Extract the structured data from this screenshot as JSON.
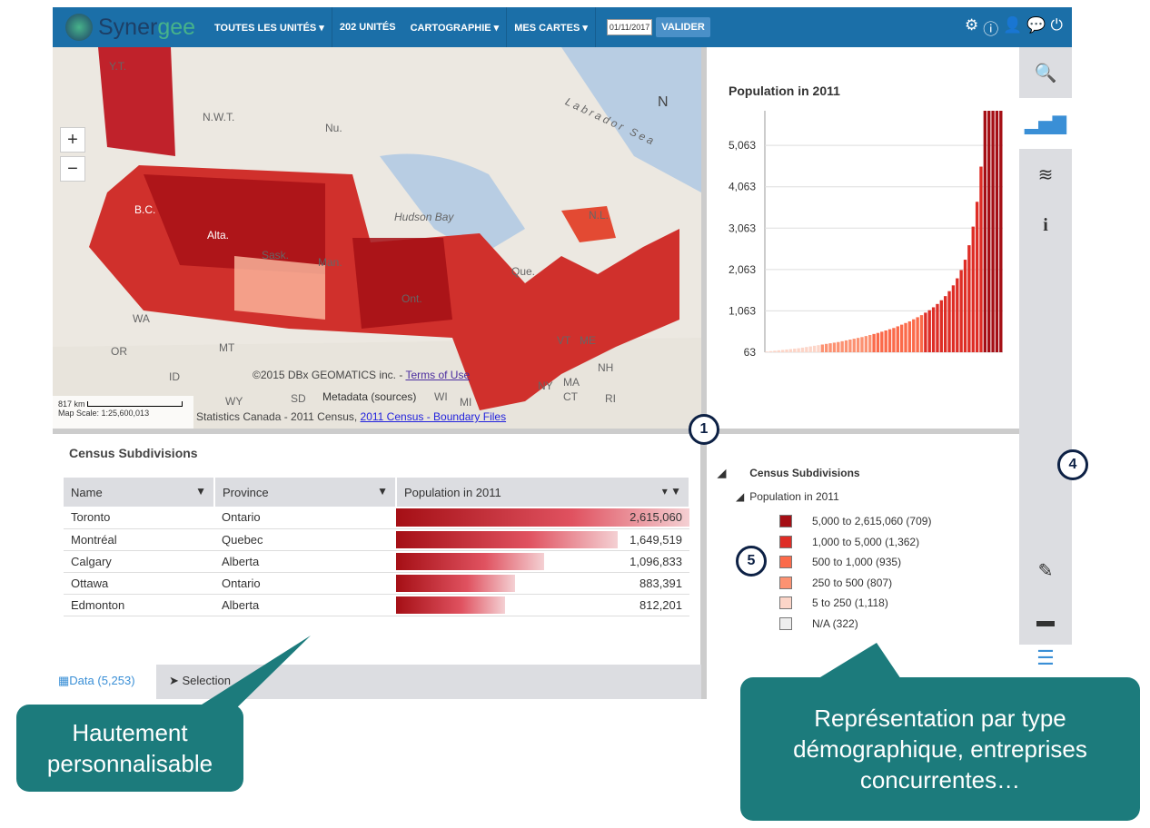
{
  "topbar": {
    "brand_a": "Syner",
    "brand_b": "gee",
    "nav": [
      "TOUTES LES UNITÉS ▾",
      "202 UNITÉS",
      "CARTOGRAPHIE ▾",
      "MES CARTES ▾"
    ],
    "date": "01/11/2017",
    "valider": "VALIDER"
  },
  "map": {
    "labels": [
      "Y.T.",
      "N.W.T.",
      "Nu.",
      "B.C.",
      "Alta.",
      "Sask.",
      "Man.",
      "Ont.",
      "Que.",
      "N.L.",
      "Hudson Bay",
      "Labrador Sea",
      "WA",
      "OR",
      "MT",
      "ID",
      "WY",
      "SD",
      "WI",
      "MI",
      "NY",
      "MA",
      "CT",
      "RI",
      "NH",
      "ME",
      "VT",
      "N"
    ],
    "copyright": "©2015 DBx GEOMATICS inc. - ",
    "terms": "Terms of Use",
    "metadata": "Metadata (sources)",
    "source": "Statistics Canada - 2011 Census, ",
    "source_link": "2011 Census - Boundary Files",
    "scale_km": "817 km",
    "map_scale": "Map Scale: 1:25,600,013",
    "zoom_in": "+",
    "zoom_out": "−"
  },
  "chart_data": {
    "type": "bar",
    "title": "Population in 2011",
    "yticks": [
      "63",
      "1,063",
      "2,063",
      "3,063",
      "4,063",
      "5,063"
    ],
    "ylim": [
      63,
      5900
    ],
    "values": [
      80,
      90,
      100,
      110,
      120,
      130,
      140,
      150,
      160,
      175,
      190,
      205,
      220,
      235,
      250,
      265,
      280,
      295,
      310,
      330,
      350,
      370,
      390,
      410,
      430,
      455,
      480,
      505,
      530,
      560,
      590,
      620,
      650,
      690,
      730,
      770,
      810,
      860,
      910,
      960,
      1020,
      1080,
      1150,
      1230,
      1320,
      1420,
      1540,
      1680,
      1850,
      2050,
      2300,
      2650,
      3100,
      3700,
      4550,
      5900,
      5900,
      5900,
      5900,
      5900
    ]
  },
  "table": {
    "title": "Census Subdivisions",
    "headers": [
      "Name",
      "Province",
      "Population in 2011"
    ],
    "rows": [
      [
        "Toronto",
        "Ontario",
        "2,615,060"
      ],
      [
        "Montréal",
        "Quebec",
        "1,649,519"
      ],
      [
        "Calgary",
        "Alberta",
        "1,096,833"
      ],
      [
        "Ottawa",
        "Ontario",
        "883,391"
      ],
      [
        "Edmonton",
        "Alberta",
        "812,201"
      ]
    ],
    "tabs": [
      "Data (5,253)",
      "Selection"
    ]
  },
  "legend": {
    "layer": "Census Subdivisions",
    "field": "Population in 2011",
    "items": [
      {
        "label": "5,000 to 2,615,060 (709)",
        "color": "#a50f15"
      },
      {
        "label": "1,000 to 5,000 (1,362)",
        "color": "#de2d26"
      },
      {
        "label": "500 to 1,000 (935)",
        "color": "#fb6a4a"
      },
      {
        "label": "250 to 500 (807)",
        "color": "#fc9272"
      },
      {
        "label": "5 to 250 (1,118)",
        "color": "#fcd5c8"
      },
      {
        "label": "N/A (322)",
        "color": "#eeeeee"
      }
    ]
  },
  "badges": [
    "1",
    "4",
    "5"
  ],
  "callouts": [
    "Hautement personnalisable",
    "Représentation par type démographique, entreprises concurrentes…"
  ]
}
